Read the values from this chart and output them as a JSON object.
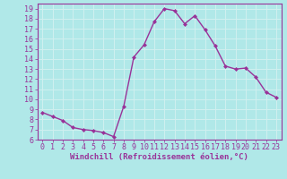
{
  "x": [
    0,
    1,
    2,
    3,
    4,
    5,
    6,
    7,
    8,
    9,
    10,
    11,
    12,
    13,
    14,
    15,
    16,
    17,
    18,
    19,
    20,
    21,
    22,
    23
  ],
  "y": [
    8.7,
    8.3,
    7.9,
    7.2,
    7.0,
    6.9,
    6.7,
    6.3,
    9.3,
    14.2,
    15.4,
    17.7,
    19.0,
    18.8,
    17.5,
    18.3,
    16.9,
    15.3,
    13.3,
    13.0,
    13.1,
    12.2,
    10.7,
    10.2
  ],
  "line_color": "#993399",
  "bg_color": "#b0e8e8",
  "grid_color": "#d0f0f0",
  "xlabel": "Windchill (Refroidissement éolien,°C)",
  "ylim": [
    6,
    19.5
  ],
  "xlim": [
    -0.5,
    23.5
  ],
  "yticks": [
    6,
    7,
    8,
    9,
    10,
    11,
    12,
    13,
    14,
    15,
    16,
    17,
    18,
    19
  ],
  "xticks": [
    0,
    1,
    2,
    3,
    4,
    5,
    6,
    7,
    8,
    9,
    10,
    11,
    12,
    13,
    14,
    15,
    16,
    17,
    18,
    19,
    20,
    21,
    22,
    23
  ],
  "marker": "D",
  "marker_size": 2.0,
  "line_width": 1.0,
  "xlabel_fontsize": 6.5,
  "tick_fontsize": 6.0,
  "tick_color": "#993399",
  "spine_color": "#993399"
}
